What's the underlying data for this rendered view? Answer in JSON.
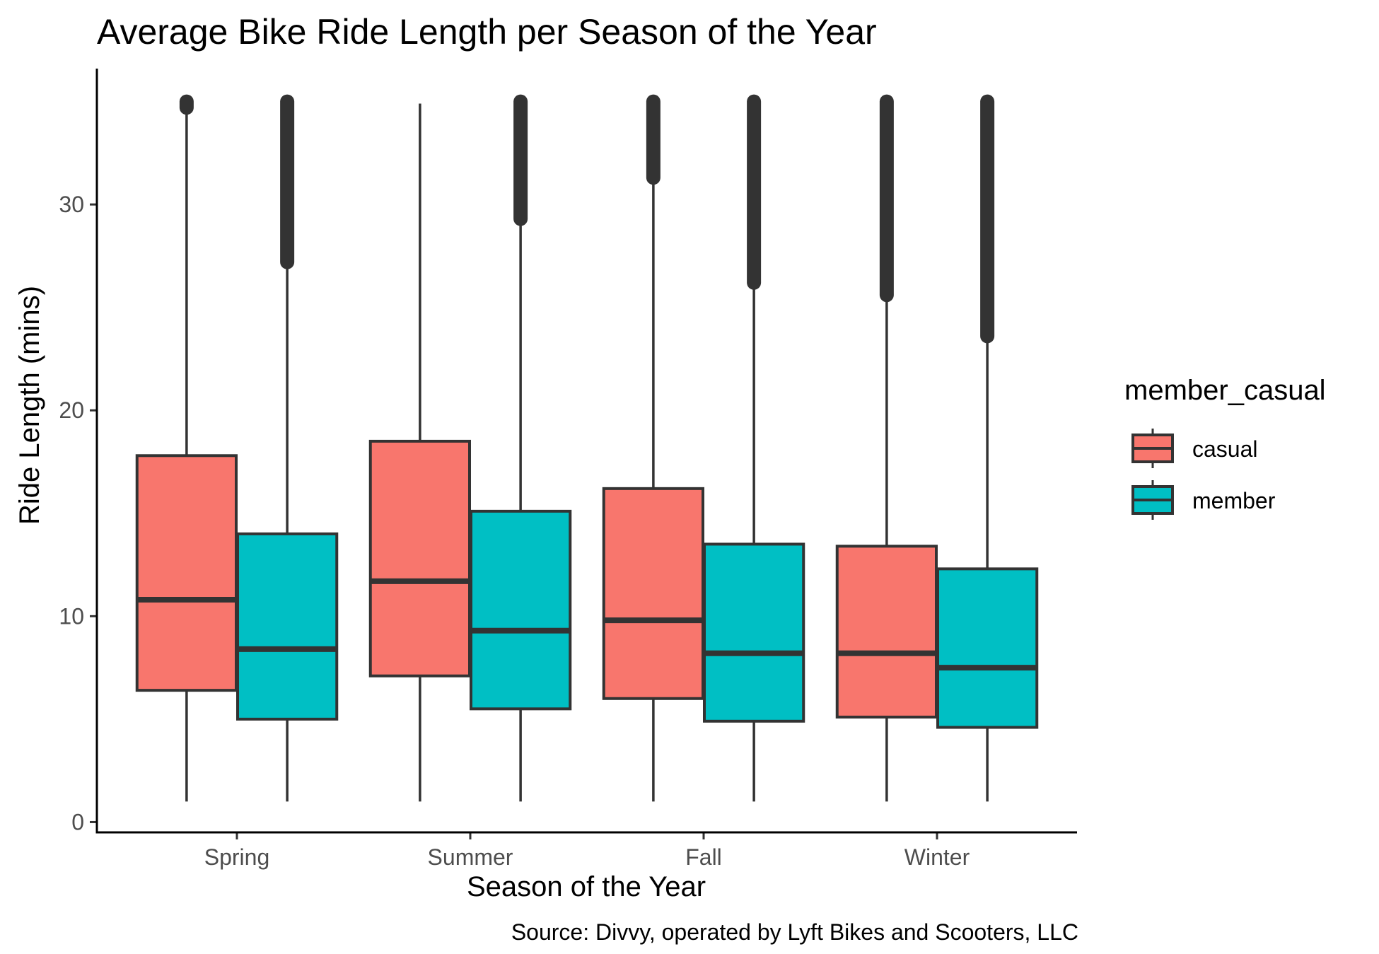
{
  "chart_data": {
    "type": "boxplot",
    "title": "Average Bike Ride Length per Season of the Year",
    "xlabel": "Season of the Year",
    "ylabel": "Ride Length (mins)",
    "caption": "Source: Divvy, operated by Lyft Bikes and Scooters, LLC",
    "categories": [
      "Spring",
      "Summer",
      "Fall",
      "Winter"
    ],
    "ylim": [
      -0.5,
      36.6
    ],
    "yticks": [
      0,
      10,
      20,
      30
    ],
    "grid": false,
    "legend": {
      "title": "member_casual",
      "position": "right",
      "entries": [
        "casual",
        "member"
      ]
    },
    "series": [
      {
        "name": "casual",
        "color": "#F8766D",
        "boxes": [
          {
            "category": "Spring",
            "whisker_low": 1.0,
            "q1": 6.4,
            "median": 10.8,
            "q3": 17.8,
            "whisker_high": 34.7,
            "outliers_from": 34.7,
            "outliers_to": 35.0
          },
          {
            "category": "Summer",
            "whisker_low": 1.0,
            "q1": 7.1,
            "median": 11.7,
            "q3": 18.5,
            "whisker_high": 34.9,
            "outliers_from": null,
            "outliers_to": null
          },
          {
            "category": "Fall",
            "whisker_low": 1.0,
            "q1": 6.0,
            "median": 9.8,
            "q3": 16.2,
            "whisker_high": 31.0,
            "outliers_from": 31.3,
            "outliers_to": 35.0
          },
          {
            "category": "Winter",
            "whisker_low": 1.0,
            "q1": 5.1,
            "median": 8.2,
            "q3": 13.4,
            "whisker_high": 25.4,
            "outliers_from": 25.6,
            "outliers_to": 35.0
          }
        ]
      },
      {
        "name": "member",
        "color": "#00BFC4",
        "boxes": [
          {
            "category": "Spring",
            "whisker_low": 1.0,
            "q1": 5.0,
            "median": 8.4,
            "q3": 14.0,
            "whisker_high": 27.0,
            "outliers_from": 27.2,
            "outliers_to": 35.0
          },
          {
            "category": "Summer",
            "whisker_low": 1.0,
            "q1": 5.5,
            "median": 9.3,
            "q3": 15.1,
            "whisker_high": 29.1,
            "outliers_from": 29.3,
            "outliers_to": 35.0
          },
          {
            "category": "Fall",
            "whisker_low": 1.0,
            "q1": 4.9,
            "median": 8.2,
            "q3": 13.5,
            "whisker_high": 26.0,
            "outliers_from": 26.2,
            "outliers_to": 35.0
          },
          {
            "category": "Winter",
            "whisker_low": 1.0,
            "q1": 4.6,
            "median": 7.5,
            "q3": 12.3,
            "whisker_high": 23.4,
            "outliers_from": 23.6,
            "outliers_to": 35.0
          }
        ]
      }
    ]
  }
}
